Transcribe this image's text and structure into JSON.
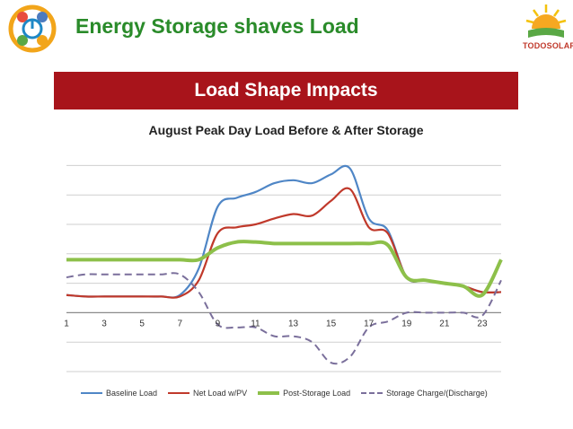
{
  "slide": {
    "title": "Energy Storage shaves Load",
    "banner": "Load Shape Impacts",
    "logo_right_text": "TODOSOLAR"
  },
  "colors": {
    "title": "#2a8b2a",
    "banner": "#a8141b",
    "baseline": "#4f86c6",
    "net": "#c0392b",
    "post": "#8dc04a",
    "storage": "#7a6f9b"
  },
  "chart_data": {
    "type": "line",
    "title": "August Peak Day Load Before & After Storage",
    "xlabel": "",
    "ylabel": "",
    "x": [
      1,
      2,
      3,
      4,
      5,
      6,
      7,
      8,
      9,
      10,
      11,
      12,
      13,
      14,
      15,
      16,
      17,
      18,
      19,
      20,
      21,
      22,
      23,
      24
    ],
    "x_ticks": [
      "1",
      "3",
      "5",
      "7",
      "9",
      "11",
      "13",
      "15",
      "17",
      "19",
      "21",
      "23"
    ],
    "xlim": [
      1,
      24
    ],
    "ylim": [
      -2,
      5.5
    ],
    "gridlines": [
      -2,
      -1,
      0,
      1,
      2,
      3,
      4,
      5
    ],
    "grid": true,
    "legend_position": "bottom",
    "series": [
      {
        "name": "Baseline Load",
        "color": "#4f86c6",
        "style": "solid",
        "values": [
          0.6,
          0.55,
          0.55,
          0.55,
          0.55,
          0.55,
          0.6,
          1.5,
          3.6,
          3.9,
          4.1,
          4.4,
          4.5,
          4.4,
          4.7,
          4.9,
          3.2,
          2.8,
          1.2,
          1.1,
          1.0,
          0.9,
          0.7,
          0.7
        ]
      },
      {
        "name": "Net Load w/PV",
        "color": "#c0392b",
        "style": "solid",
        "values": [
          0.6,
          0.55,
          0.55,
          0.55,
          0.55,
          0.55,
          0.55,
          1.1,
          2.7,
          2.9,
          3.0,
          3.2,
          3.35,
          3.3,
          3.8,
          4.2,
          2.9,
          2.7,
          1.2,
          1.1,
          1.0,
          0.9,
          0.7,
          0.7
        ]
      },
      {
        "name": "Post-Storage Load",
        "color": "#8dc04a",
        "style": "solid",
        "values": [
          1.8,
          1.8,
          1.8,
          1.8,
          1.8,
          1.8,
          1.8,
          1.8,
          2.2,
          2.4,
          2.4,
          2.35,
          2.35,
          2.35,
          2.35,
          2.35,
          2.35,
          2.3,
          1.2,
          1.1,
          1.0,
          0.9,
          0.6,
          1.8
        ]
      },
      {
        "name": "Storage Charge/(Discharge)",
        "color": "#7a6f9b",
        "style": "dashed",
        "values": [
          1.2,
          1.3,
          1.3,
          1.3,
          1.3,
          1.3,
          1.3,
          0.7,
          -0.4,
          -0.5,
          -0.5,
          -0.8,
          -0.8,
          -1.0,
          -1.7,
          -1.5,
          -0.5,
          -0.3,
          0.0,
          0.0,
          0.0,
          0.0,
          -0.1,
          1.1
        ]
      }
    ]
  }
}
